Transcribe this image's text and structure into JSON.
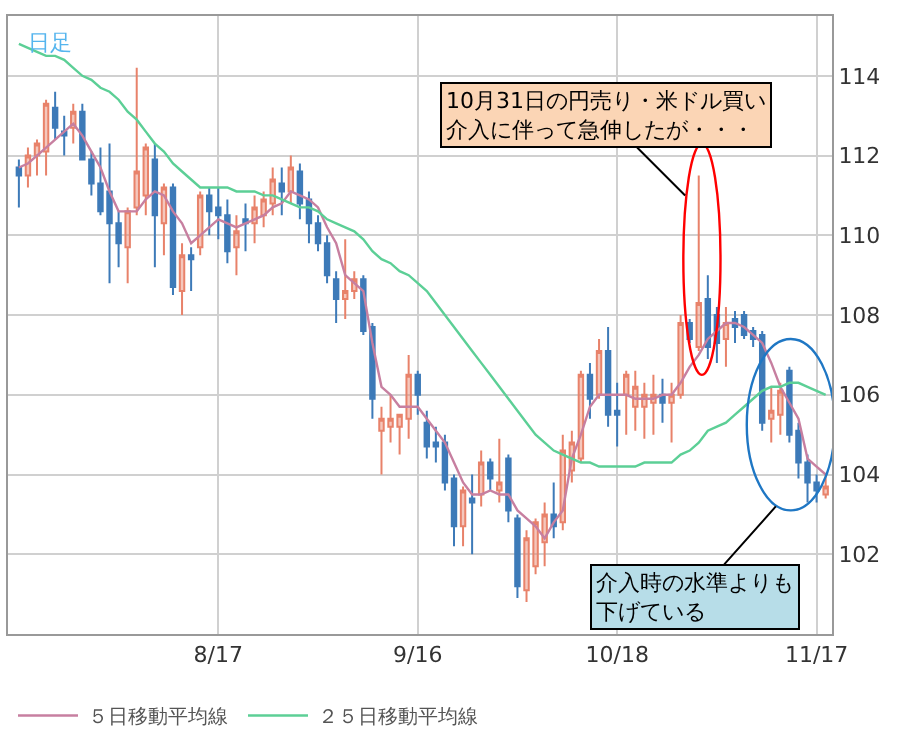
{
  "chart_data": {
    "type": "candlestick",
    "categories": [
      null,
      null,
      null,
      null,
      null,
      null,
      null,
      null,
      null,
      null,
      null,
      null,
      null,
      null,
      null,
      null,
      null,
      null,
      null,
      null,
      null,
      null,
      "8/17",
      null,
      null,
      null,
      null,
      null,
      null,
      null,
      null,
      null,
      null,
      null,
      null,
      null,
      null,
      null,
      null,
      null,
      null,
      null,
      null,
      null,
      "9/16",
      null,
      null,
      null,
      null,
      null,
      null,
      null,
      null,
      null,
      null,
      null,
      null,
      null,
      null,
      null,
      null,
      null,
      null,
      null,
      null,
      null,
      "10/18",
      null,
      null,
      null,
      null,
      null,
      null,
      null,
      null,
      null,
      null,
      null,
      null,
      null,
      null,
      null,
      null,
      null,
      null,
      null,
      null,
      null,
      "11/17",
      null
    ],
    "series": [
      {
        "colors": [
          "#3d7ab8",
          "#e8826a",
          "#e8826a",
          "#e8826a",
          "#3d7ab8",
          "#3d7ab8",
          "#e8826a",
          "#3d7ab8",
          "#3d7ab8",
          "#3d7ab8",
          "#3d7ab8",
          "#3d7ab8",
          "#e8826a",
          "#e8826a",
          "#e8826a",
          "#3d7ab8",
          "#e8826a",
          "#3d7ab8",
          "#e8826a",
          "#3d7ab8",
          "#e8826a",
          "#3d7ab8",
          "#3d7ab8",
          "#3d7ab8",
          "#e8826a",
          "#3d7ab8",
          "#e8826a",
          "#e8826a",
          "#e8826a",
          "#3d7ab8",
          "#e8826a",
          "#3d7ab8",
          "#3d7ab8",
          "#3d7ab8",
          "#3d7ab8",
          "#3d7ab8",
          "#e8826a",
          "#e8826a",
          "#3d7ab8",
          "#3d7ab8",
          "#e8826a",
          "#e8826a",
          "#e8826a",
          "#e8826a",
          "#3d7ab8",
          "#3d7ab8",
          "#3d7ab8",
          "#3d7ab8",
          "#3d7ab8",
          "#e8826a",
          "#3d7ab8",
          "#e8826a",
          "#3d7ab8",
          "#e8826a",
          "#3d7ab8",
          "#3d7ab8",
          "#e8826a",
          "#e8826a",
          "#e8826a",
          "#3d7ab8",
          "#e8826a",
          "#e8826a",
          "#e8826a",
          "#3d7ab8",
          "#e8826a",
          "#3d7ab8",
          "#3d7ab8",
          "#e8826a",
          "#e8826a",
          "#e8826a",
          "#e8826a",
          "#3d7ab8",
          "#e8826a",
          "#e8826a",
          "#3d7ab8",
          "#e8826a",
          "#3d7ab8",
          "#3d7ab8",
          "#e8826a",
          "#3d7ab8",
          "#3d7ab8",
          "#3d7ab8",
          "#3d7ab8",
          "#e8826a",
          "#e8826a",
          "#3d7ab8",
          "#3d7ab8",
          "#3d7ab8",
          "#3d7ab8",
          "#e8826a"
        ],
        "ohlc": [
          [
            111.7,
            111.9,
            110.7,
            111.5
          ],
          [
            111.5,
            112.2,
            111.2,
            112.0
          ],
          [
            112.0,
            112.4,
            111.5,
            112.3
          ],
          [
            112.1,
            113.4,
            111.5,
            113.3
          ],
          [
            113.2,
            113.6,
            112.4,
            112.7
          ],
          [
            112.6,
            113.0,
            112.0,
            112.5
          ],
          [
            112.7,
            113.3,
            112.3,
            113.1
          ],
          [
            113.1,
            113.3,
            111.9,
            111.9
          ],
          [
            111.9,
            112.1,
            111.0,
            111.3
          ],
          [
            111.3,
            112.2,
            110.5,
            110.6
          ],
          [
            111.1,
            112.3,
            108.8,
            110.3
          ],
          [
            110.3,
            110.6,
            109.2,
            109.8
          ],
          [
            109.7,
            110.7,
            108.8,
            110.6
          ],
          [
            110.7,
            114.2,
            110.5,
            111.6
          ],
          [
            111.0,
            112.3,
            110.5,
            112.2
          ],
          [
            111.9,
            112.3,
            109.2,
            110.5
          ],
          [
            110.3,
            111.3,
            109.5,
            111.2
          ],
          [
            111.2,
            111.3,
            108.5,
            108.7
          ],
          [
            108.6,
            109.8,
            108.0,
            109.5
          ],
          [
            109.5,
            109.7,
            108.6,
            109.4
          ],
          [
            109.7,
            111.1,
            109.5,
            111.0
          ],
          [
            111.0,
            111.2,
            110.0,
            110.6
          ],
          [
            110.7,
            111.2,
            109.9,
            110.5
          ],
          [
            110.5,
            110.9,
            109.3,
            109.6
          ],
          [
            109.7,
            110.5,
            109.0,
            110.1
          ],
          [
            110.4,
            110.8,
            109.6,
            110.3
          ],
          [
            110.3,
            111.0,
            109.8,
            110.7
          ],
          [
            110.5,
            111.1,
            110.2,
            110.9
          ],
          [
            110.8,
            111.7,
            110.5,
            111.4
          ],
          [
            111.3,
            111.7,
            110.5,
            111.1
          ],
          [
            111.1,
            112.0,
            110.8,
            111.7
          ],
          [
            111.6,
            111.8,
            110.4,
            110.8
          ],
          [
            110.9,
            111.1,
            109.8,
            110.3
          ],
          [
            110.3,
            110.5,
            109.6,
            109.8
          ],
          [
            109.8,
            110.0,
            108.8,
            109.0
          ],
          [
            108.9,
            109.1,
            107.8,
            108.4
          ],
          [
            108.4,
            109.9,
            107.9,
            108.6
          ],
          [
            108.6,
            109.1,
            108.4,
            108.9
          ],
          [
            108.9,
            109.0,
            107.5,
            107.6
          ],
          [
            107.7,
            107.8,
            105.4,
            105.9
          ],
          [
            105.1,
            105.7,
            104.0,
            105.4
          ],
          [
            105.2,
            106.0,
            104.8,
            105.4
          ],
          [
            105.2,
            105.5,
            104.5,
            105.5
          ],
          [
            105.4,
            107.0,
            104.9,
            106.5
          ],
          [
            106.5,
            106.6,
            105.5,
            106.0
          ],
          [
            105.3,
            105.6,
            104.4,
            104.7
          ],
          [
            104.8,
            105.2,
            104.3,
            104.7
          ],
          [
            104.8,
            105.0,
            103.6,
            103.8
          ],
          [
            103.9,
            104.0,
            102.2,
            102.7
          ],
          [
            102.7,
            103.7,
            102.2,
            103.6
          ],
          [
            103.4,
            104.0,
            102.0,
            103.3
          ],
          [
            103.5,
            104.6,
            103.2,
            104.3
          ],
          [
            104.3,
            104.4,
            103.6,
            103.9
          ],
          [
            103.6,
            104.9,
            103.3,
            103.8
          ],
          [
            104.4,
            104.5,
            102.8,
            103.1
          ],
          [
            102.9,
            103.0,
            100.9,
            101.2
          ],
          [
            101.1,
            102.6,
            100.8,
            102.4
          ],
          [
            101.7,
            102.9,
            101.5,
            102.8
          ],
          [
            102.3,
            103.3,
            101.7,
            103.0
          ],
          [
            103.0,
            103.8,
            102.4,
            102.7
          ],
          [
            102.8,
            105.0,
            102.6,
            104.6
          ],
          [
            104.1,
            105.1,
            103.8,
            104.8
          ],
          [
            104.4,
            106.6,
            104.3,
            106.5
          ],
          [
            106.5,
            106.8,
            105.4,
            105.9
          ],
          [
            106.0,
            107.4,
            105.9,
            107.1
          ],
          [
            107.1,
            107.7,
            105.2,
            105.5
          ],
          [
            105.6,
            106.3,
            104.7,
            105.5
          ],
          [
            106.0,
            106.6,
            105.0,
            106.5
          ],
          [
            105.7,
            106.6,
            105.1,
            106.2
          ],
          [
            105.7,
            106.3,
            104.9,
            106.0
          ],
          [
            105.8,
            106.5,
            105.0,
            106.0
          ],
          [
            106.0,
            106.4,
            105.3,
            105.8
          ],
          [
            105.8,
            106.3,
            104.8,
            106.0
          ],
          [
            106.0,
            108.0,
            105.9,
            107.8
          ],
          [
            107.8,
            107.9,
            107.3,
            107.4
          ],
          [
            107.2,
            111.5,
            107.1,
            108.3
          ],
          [
            108.4,
            109.0,
            106.9,
            107.2
          ],
          [
            108.0,
            108.2,
            106.8,
            107.3
          ],
          [
            107.4,
            108.2,
            106.7,
            107.8
          ],
          [
            107.9,
            108.1,
            107.3,
            107.7
          ],
          [
            108.0,
            108.1,
            107.4,
            107.5
          ],
          [
            107.6,
            107.7,
            107.2,
            107.4
          ],
          [
            107.5,
            107.6,
            105.1,
            105.3
          ],
          [
            105.4,
            106.2,
            104.8,
            105.6
          ],
          [
            105.5,
            106.3,
            105.0,
            106.1
          ],
          [
            106.6,
            106.7,
            104.8,
            105.0
          ],
          [
            105.1,
            105.3,
            103.9,
            104.3
          ],
          [
            104.3,
            104.5,
            103.3,
            103.8
          ],
          [
            103.8,
            104.0,
            103.3,
            103.6
          ],
          [
            103.5,
            104.0,
            103.4,
            103.7
          ]
        ]
      },
      {
        "type": "line",
        "name": "５日移動平均線",
        "color": "#c77fa0",
        "values": [
          111.7,
          111.8,
          112.0,
          112.2,
          112.4,
          112.6,
          112.8,
          112.5,
          112.1,
          111.7,
          111.1,
          110.6,
          110.6,
          110.6,
          110.9,
          111.1,
          111.0,
          110.6,
          110.3,
          109.8,
          110.0,
          110.2,
          110.4,
          110.3,
          110.2,
          110.3,
          110.4,
          110.5,
          110.7,
          110.8,
          111.1,
          111.0,
          110.9,
          110.7,
          110.2,
          109.8,
          109.0,
          108.8,
          108.6,
          107.3,
          106.2,
          106.0,
          105.7,
          105.7,
          105.7,
          105.4,
          105.1,
          104.8,
          104.3,
          103.8,
          103.5,
          103.5,
          103.6,
          103.5,
          103.5,
          103.1,
          102.9,
          102.7,
          102.4,
          102.8,
          103.1,
          104.4,
          105.0,
          105.7,
          106.0,
          106.0,
          106.0,
          106.0,
          105.9,
          105.9,
          105.9,
          106.0,
          106.0,
          106.3,
          106.7,
          107.0,
          107.4,
          107.6,
          107.8,
          107.8,
          107.7,
          107.5,
          107.3,
          106.8,
          106.2,
          105.8,
          105.4,
          104.4,
          104.2,
          104.0
        ]
      },
      {
        "type": "line",
        "name": "２５日移動平均線",
        "color": "#5ccf96",
        "values": [
          114.8,
          114.7,
          114.6,
          114.5,
          114.5,
          114.4,
          114.2,
          114.0,
          113.9,
          113.7,
          113.6,
          113.4,
          113.1,
          112.9,
          112.6,
          112.3,
          112.1,
          111.8,
          111.6,
          111.4,
          111.2,
          111.2,
          111.2,
          111.2,
          111.1,
          111.1,
          111.1,
          111.0,
          111.0,
          110.9,
          110.8,
          110.7,
          110.7,
          110.6,
          110.4,
          110.3,
          110.2,
          110.1,
          109.9,
          109.6,
          109.4,
          109.3,
          109.1,
          109.0,
          108.8,
          108.6,
          108.3,
          108.0,
          107.7,
          107.4,
          107.1,
          106.8,
          106.5,
          106.2,
          105.9,
          105.6,
          105.3,
          105.0,
          104.8,
          104.6,
          104.5,
          104.4,
          104.3,
          104.3,
          104.2,
          104.2,
          104.2,
          104.2,
          104.2,
          104.3,
          104.3,
          104.3,
          104.3,
          104.5,
          104.6,
          104.8,
          105.1,
          105.2,
          105.3,
          105.5,
          105.7,
          105.9,
          106.1,
          106.2,
          106.2,
          106.3,
          106.3,
          106.2,
          106.1,
          106.0
        ]
      }
    ],
    "ylim": [
      100,
      115.5
    ],
    "yticks": [
      102,
      104,
      106,
      108,
      110,
      112,
      114
    ],
    "grid": true,
    "legend": "bottom",
    "annotations": [
      "日足",
      "10月31日の円売り・米ドル買い介入に伴って急伸したが・・・",
      "介入時の水準よりも下げている"
    ]
  }
}
